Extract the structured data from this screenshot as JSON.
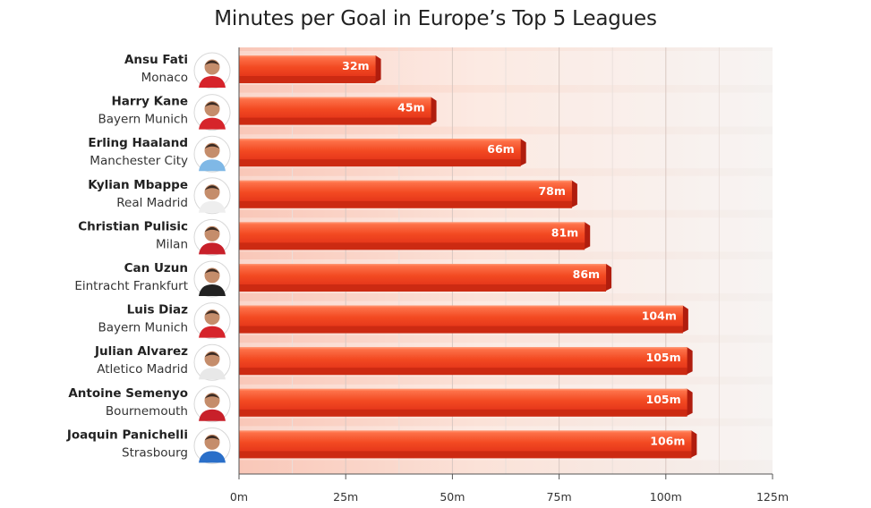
{
  "chart_data": {
    "type": "bar",
    "orientation": "horizontal",
    "title": "Minutes per Goal in Europe’s Top 5 Leagues",
    "xlim": [
      0,
      125
    ],
    "xticks": [
      0,
      25,
      50,
      75,
      100,
      125
    ],
    "tick_labels": [
      "0m",
      "25m",
      "50m",
      "75m",
      "100m",
      "125m"
    ],
    "grid": true,
    "bar_color": "#f0401e",
    "bars": [
      {
        "player": "Ansu Fati",
        "team": "Monaco",
        "value": 32,
        "label": "32m",
        "kit": "#d6242b"
      },
      {
        "player": "Harry Kane",
        "team": "Bayern Munich",
        "value": 45,
        "label": "45m",
        "kit": "#d6242b"
      },
      {
        "player": "Erling Haaland",
        "team": "Manchester City",
        "value": 66,
        "label": "66m",
        "kit": "#7fb8e6"
      },
      {
        "player": "Kylian Mbappe",
        "team": "Real Madrid",
        "value": 78,
        "label": "78m",
        "kit": "#eeeeee"
      },
      {
        "player": "Christian Pulisic",
        "team": "Milan",
        "value": 81,
        "label": "81m",
        "kit": "#c8202a"
      },
      {
        "player": "Can Uzun",
        "team": "Eintracht Frankfurt",
        "value": 86,
        "label": "86m",
        "kit": "#222222"
      },
      {
        "player": "Luis Diaz",
        "team": "Bayern Munich",
        "value": 104,
        "label": "104m",
        "kit": "#d6242b"
      },
      {
        "player": "Julian Alvarez",
        "team": "Atletico Madrid",
        "value": 105,
        "label": "105m",
        "kit": "#e8e8e8"
      },
      {
        "player": "Antoine Semenyo",
        "team": "Bournemouth",
        "value": 105,
        "label": "105m",
        "kit": "#c8202a"
      },
      {
        "player": "Joaquin Panichelli",
        "team": "Strasbourg",
        "value": 106,
        "label": "106m",
        "kit": "#2a6fc9"
      }
    ]
  }
}
